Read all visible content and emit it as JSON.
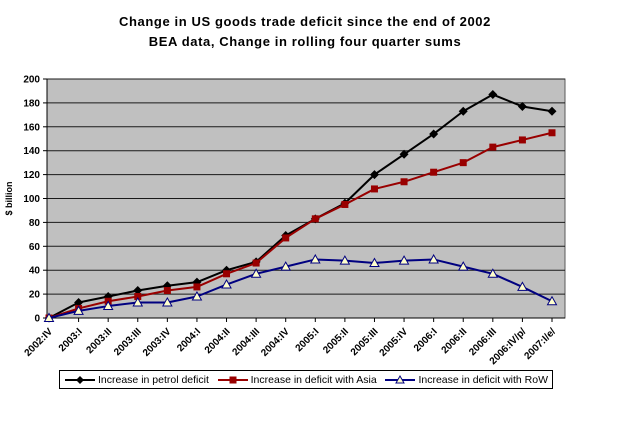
{
  "title": {
    "line1": "Change in US goods trade deficit since the end of 2002",
    "line2": "BEA data, Change in rolling four quarter sums"
  },
  "y_axis": {
    "label": "$ billion",
    "tick_labels": [
      "0",
      "20",
      "40",
      "60",
      "80",
      "100",
      "120",
      "140",
      "160",
      "180",
      "200"
    ]
  },
  "colors": {
    "plot_background": "#c0c0c0",
    "plot_border": "#5a5a5a",
    "gridline": "#1a1a1a",
    "axis": "#000000",
    "series_petrol": "#000000",
    "series_asia": "#990000",
    "series_row": "#000080",
    "triangle_fill": "#ffffcc"
  },
  "chart_data": {
    "type": "line",
    "title": "Change in US goods trade deficit since the end of 2002 — BEA data, Change in rolling four quarter sums",
    "xlabel": "",
    "ylabel": "$ billion",
    "ylim": [
      0,
      200
    ],
    "ytick_step": 20,
    "grid": true,
    "legend_position": "bottom",
    "categories": [
      "2002:IV",
      "2003:I",
      "2003:II",
      "2003:III",
      "2003:IV",
      "2004:I",
      "2004:II",
      "2004:III",
      "2004:IV",
      "2005:I",
      "2005:II",
      "2005:III",
      "2005:IV",
      "2006:I",
      "2006:II",
      "2006:III",
      "2006:IV/p/",
      "2007:I/e/"
    ],
    "series": [
      {
        "name": "Increase in petrol deficit",
        "marker": "diamond",
        "color": "#000000",
        "marker_fill": "#000000",
        "values": [
          0,
          13,
          18,
          23,
          27,
          30,
          40,
          47,
          69,
          83,
          96,
          120,
          137,
          154,
          173,
          187,
          177,
          173
        ]
      },
      {
        "name": "Increase in deficit with Asia",
        "marker": "square",
        "color": "#990000",
        "marker_fill": "#990000",
        "values": [
          0,
          8,
          14,
          18,
          23,
          26,
          37,
          46,
          67,
          83,
          95,
          108,
          114,
          122,
          130,
          143,
          149,
          155
        ]
      },
      {
        "name": "Increase in deficit with RoW",
        "marker": "triangle-open",
        "color": "#000080",
        "marker_fill": "#ffffcc",
        "values": [
          0,
          6,
          10,
          13,
          13,
          18,
          28,
          37,
          43,
          49,
          48,
          46,
          48,
          49,
          43,
          37,
          26,
          14
        ]
      }
    ]
  }
}
